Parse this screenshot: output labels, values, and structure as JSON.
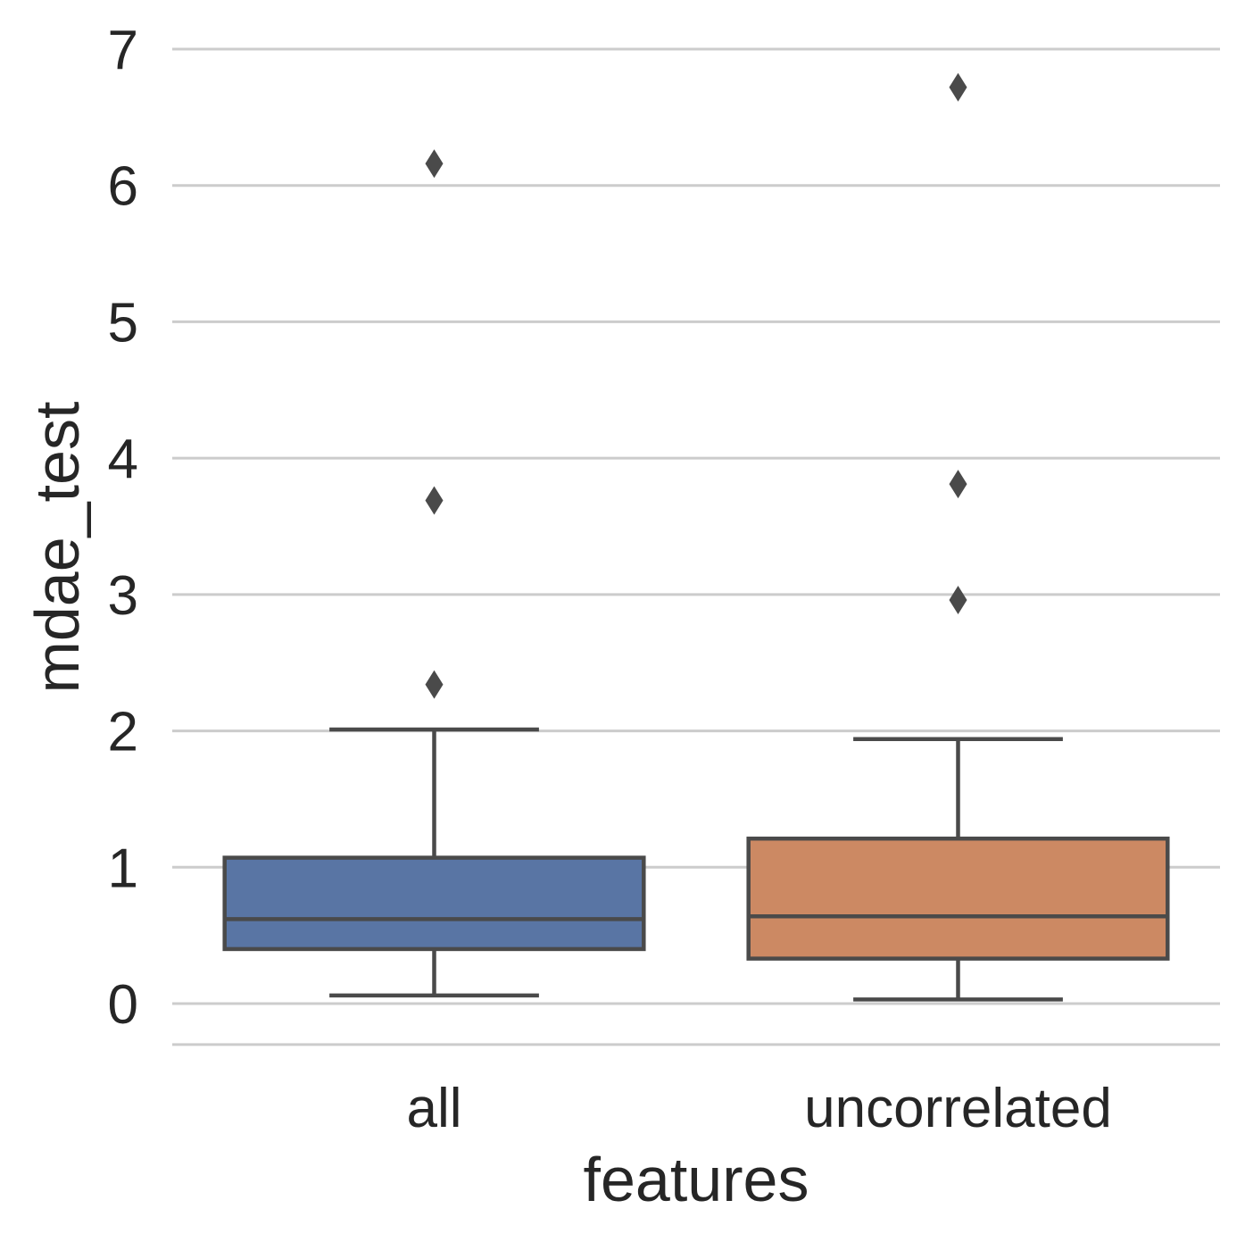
{
  "chart_data": {
    "type": "box",
    "xlabel": "features",
    "ylabel": "mdae_test",
    "ylim": [
      -0.3,
      7.1
    ],
    "yticks": [
      "0",
      "1",
      "2",
      "3",
      "4",
      "5",
      "6",
      "7"
    ],
    "grid": "horizontal",
    "categories": [
      "all",
      "uncorrelated"
    ],
    "series": [
      {
        "category": "all",
        "color": "#5975a4",
        "whisker_low": 0.06,
        "q1": 0.4,
        "median": 0.62,
        "q3": 1.07,
        "whisker_high": 2.01,
        "outliers": [
          2.34,
          3.69,
          6.16
        ]
      },
      {
        "category": "uncorrelated",
        "color": "#cc8963",
        "whisker_low": 0.03,
        "q1": 0.33,
        "median": 0.64,
        "q3": 1.21,
        "whisker_high": 1.94,
        "outliers": [
          2.96,
          3.81,
          6.72
        ]
      }
    ]
  },
  "colors": {
    "grid": "#cccccc",
    "line": "#4a4a4a",
    "text": "#262626"
  }
}
